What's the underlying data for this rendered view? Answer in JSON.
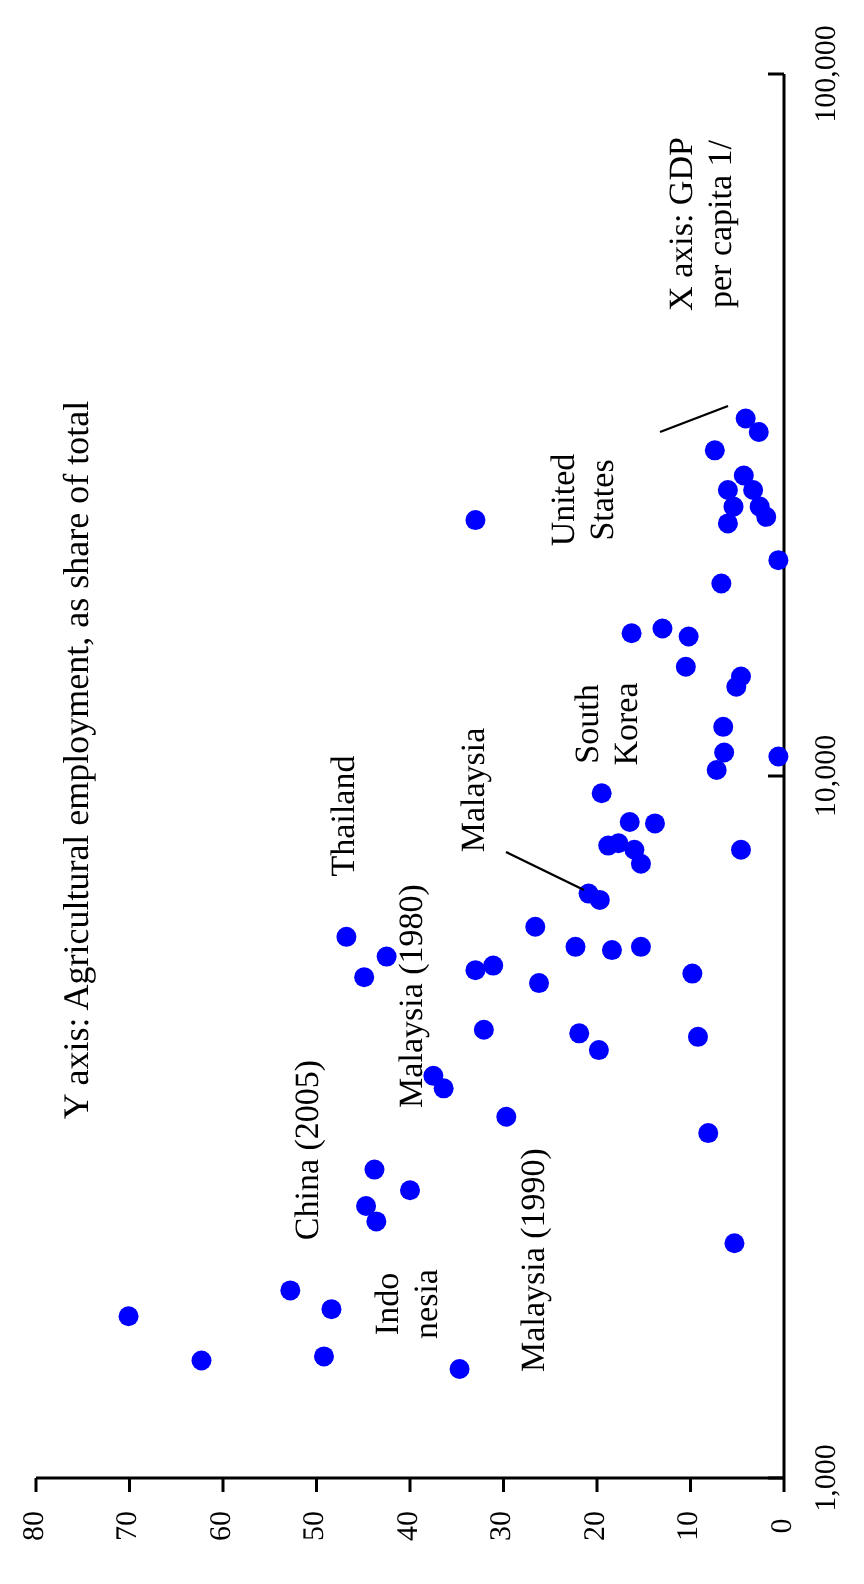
{
  "chart_data": {
    "type": "scatter",
    "log": "y",
    "xlim": [
      80,
      0
    ],
    "ylim": [
      1000,
      100000
    ],
    "xticks": [
      80,
      70,
      60,
      50,
      40,
      30,
      20,
      10,
      0
    ],
    "yticks": [
      {
        "value": 1000,
        "label": "1,000"
      },
      {
        "value": 10000,
        "label": "10,000"
      },
      {
        "value": 100000,
        "label": "100,000"
      }
    ],
    "grid": false,
    "marker": "circle",
    "series": [
      {
        "color": "#0000ff",
        "x": [
          70.1,
          62.3,
          52.8,
          48.4,
          49.2,
          43.8,
          40,
          44.7,
          43.6,
          34.7,
          37.5,
          36.4,
          32.1,
          29.7,
          21.9,
          19.8,
          9.2,
          8.1,
          5.3,
          33,
          46.8,
          44.9,
          42.5,
          33,
          31.1,
          26.6,
          26.2,
          22.3,
          18.4,
          15.3,
          9.8,
          20.9,
          19.7,
          18.8,
          17.7,
          16,
          15.3,
          16.5,
          13.8,
          19.5,
          4.6,
          7.2,
          6.4,
          6.5,
          0.6,
          5.1,
          4.6,
          10.5,
          10.2,
          16.3,
          13,
          6.7,
          0.6,
          4.1,
          2.7,
          7.4,
          4.3,
          6,
          3.3,
          5.4,
          2.6,
          6,
          1.9
        ],
        "values": [
          1700,
          1470,
          1850,
          1740,
          1490,
          2750,
          2570,
          2440,
          2320,
          1430,
          3740,
          3590,
          4350,
          3270,
          4300,
          4070,
          4250,
          3100,
          2160,
          23150,
          5900,
          5170,
          5530,
          5290,
          5370,
          6100,
          5070,
          5710,
          5650,
          5710,
          5230,
          6800,
          6660,
          7960,
          8020,
          7850,
          7500,
          8600,
          8560,
          9450,
          7850,
          10200,
          10800,
          11750,
          10660,
          13400,
          13860,
          14310,
          15800,
          15970,
          16220,
          18800,
          20300,
          32300,
          30900,
          29100,
          26800,
          25550,
          25550,
          24200,
          24200,
          22900,
          23400
        ]
      }
    ],
    "annotations": [
      "United\nStates",
      "South\nKorea",
      "Malaysia",
      "Thailand",
      "China (2005)",
      "Indo\nnesia",
      "Malaysia (1980)",
      "Malaysia (1990)",
      "Y axis: Agricultural employment, as share of total",
      "X axis: GDP\nper capita 1/"
    ]
  }
}
